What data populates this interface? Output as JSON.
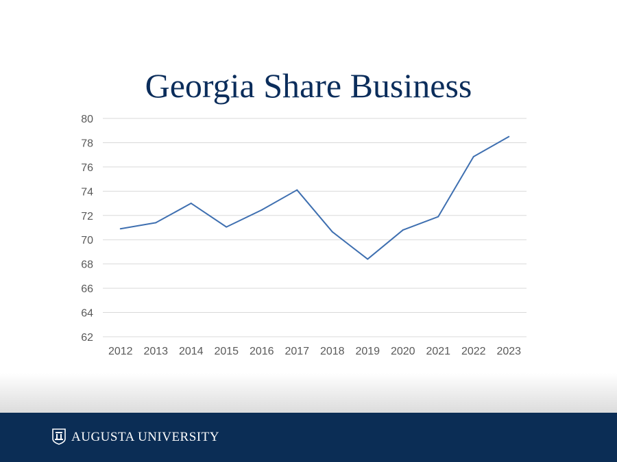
{
  "chart_data": {
    "type": "line",
    "title": "Georgia Share Business",
    "xlabel": "",
    "ylabel": "",
    "categories": [
      "2012",
      "2013",
      "2014",
      "2015",
      "2016",
      "2017",
      "2018",
      "2019",
      "2020",
      "2021",
      "2022",
      "2023"
    ],
    "series": [
      {
        "values": [
          70.9,
          71.4,
          73.0,
          71.05,
          72.45,
          74.1,
          70.65,
          68.4,
          70.8,
          71.9,
          76.85,
          78.5
        ],
        "color": "#3e6fb0"
      }
    ],
    "ylim": [
      62,
      80
    ],
    "yticks": [
      "62",
      "64",
      "66",
      "68",
      "70",
      "72",
      "74",
      "76",
      "78",
      "80"
    ],
    "grid": true,
    "legend": "none"
  },
  "footer": {
    "organization": "AUGUSTA UNIVERSITY",
    "background": "#0b2d55"
  }
}
